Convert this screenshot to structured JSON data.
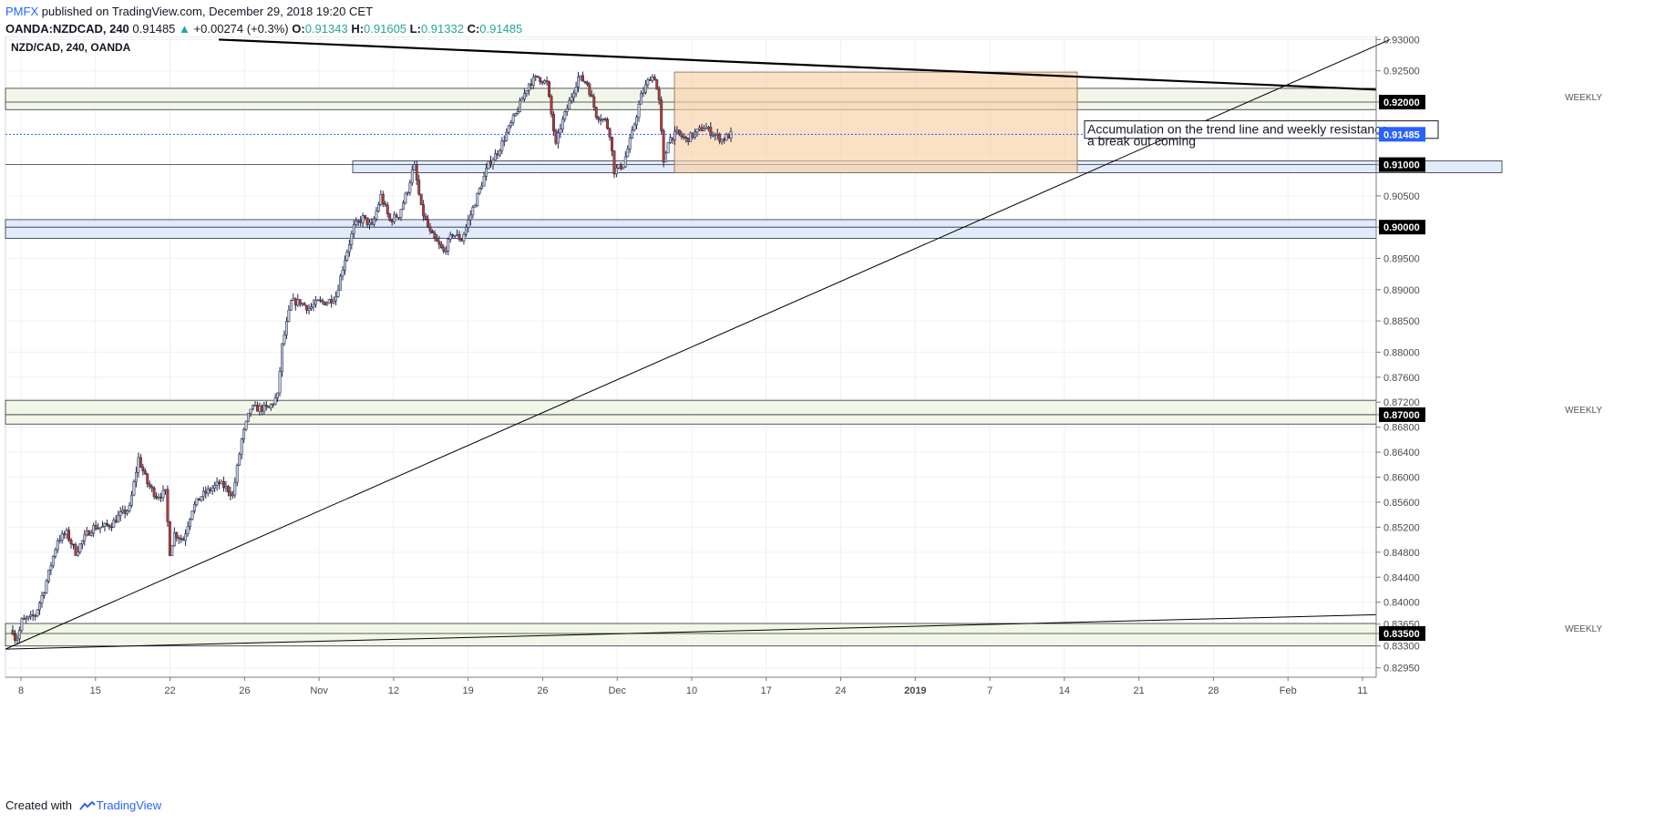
{
  "header": {
    "publisher": "PMFX",
    "published_text": "published on TradingView.com, December 29, 2018 19:20 CET",
    "symbol": "OANDA:NZDCAD, 240",
    "last": "0.91485",
    "change": "+0.00274 (+0.3%)",
    "o_label": "O:",
    "o": "0.91343",
    "h_label": "H:",
    "h": "0.91605",
    "l_label": "L:",
    "l": "0.91332",
    "c_label": "C:",
    "c": "0.91485"
  },
  "footer": {
    "created_with": "Created with",
    "brand": "TradingView"
  },
  "colors": {
    "up": "#c2cade",
    "down": "#c0392b",
    "wick": "#1d2646",
    "trendline": "#000000",
    "zone_fill": "#eef4e4",
    "zone_blue_fill": "#dde8fa",
    "box_fill": "#f7cfa6",
    "last_price": "#2962ff"
  },
  "chart_data": {
    "type": "candlestick",
    "title": "NZD/CAD, 240, OANDA",
    "ylim": [
      0.828,
      0.9305
    ],
    "x_ticks": [
      "8",
      "15",
      "22",
      "26",
      "Nov",
      "12",
      "19",
      "26",
      "Dec",
      "10",
      "17",
      "24",
      "2019",
      "7",
      "14",
      "21",
      "28",
      "Feb",
      "11"
    ],
    "y_ticks": [
      "0.93000",
      "0.92500",
      "0.92000",
      "0.91485",
      "0.91000",
      "0.90500",
      "0.90000",
      "0.89500",
      "0.89000",
      "0.88500",
      "0.88000",
      "0.87600",
      "0.87200",
      "0.87000",
      "0.86800",
      "0.86400",
      "0.86000",
      "0.85600",
      "0.85200",
      "0.84800",
      "0.84400",
      "0.84000",
      "0.83650",
      "0.83500",
      "0.83300",
      "0.82950"
    ],
    "highlighted_levels": [
      "0.92000",
      "0.91485",
      "0.91000",
      "0.90000",
      "0.87000",
      "0.83500"
    ],
    "last_price": 0.91485,
    "path": [
      [
        0,
        0.8355
      ],
      [
        0.3,
        0.834
      ],
      [
        0.6,
        0.8345
      ],
      [
        1,
        0.837
      ],
      [
        2,
        0.8375
      ],
      [
        2.5,
        0.838
      ],
      [
        3.5,
        0.842
      ],
      [
        5,
        0.85
      ],
      [
        6,
        0.851
      ],
      [
        7,
        0.848
      ],
      [
        8.3,
        0.851
      ],
      [
        9,
        0.852
      ],
      [
        10,
        0.852
      ],
      [
        11,
        0.8525
      ],
      [
        12,
        0.854
      ],
      [
        13,
        0.855
      ],
      [
        14,
        0.863
      ],
      [
        15,
        0.859
      ],
      [
        16,
        0.857
      ],
      [
        17,
        0.8575
      ],
      [
        17.5,
        0.848
      ],
      [
        18,
        0.851
      ],
      [
        19,
        0.85
      ],
      [
        20,
        0.855
      ],
      [
        21,
        0.857
      ],
      [
        22,
        0.858
      ],
      [
        23,
        0.859
      ],
      [
        24,
        0.858
      ],
      [
        24.5,
        0.857
      ],
      [
        25.5,
        0.866
      ],
      [
        26.5,
        0.871
      ],
      [
        27.5,
        0.871
      ],
      [
        28.5,
        0.871
      ],
      [
        29.5,
        0.873
      ],
      [
        30,
        0.881
      ],
      [
        31,
        0.888
      ],
      [
        32,
        0.888
      ],
      [
        33,
        0.887
      ],
      [
        34,
        0.888
      ],
      [
        35,
        0.888
      ],
      [
        36,
        0.889
      ],
      [
        37,
        0.895
      ],
      [
        38,
        0.9
      ],
      [
        39,
        0.9015
      ],
      [
        40,
        0.9
      ],
      [
        41,
        0.905
      ],
      [
        42,
        0.901
      ],
      [
        43,
        0.902
      ],
      [
        44,
        0.906
      ],
      [
        44.7,
        0.91
      ],
      [
        45.5,
        0.903
      ],
      [
        46.5,
        0.899
      ],
      [
        48,
        0.896
      ],
      [
        49,
        0.899
      ],
      [
        50,
        0.898
      ],
      [
        51,
        0.902
      ],
      [
        52,
        0.906
      ],
      [
        53,
        0.91
      ],
      [
        54,
        0.912
      ],
      [
        55,
        0.915
      ],
      [
        56,
        0.918
      ],
      [
        57.5,
        0.923
      ],
      [
        58.5,
        0.924
      ],
      [
        59.5,
        0.923
      ],
      [
        60.5,
        0.913
      ],
      [
        61,
        0.916
      ],
      [
        62,
        0.92
      ],
      [
        63,
        0.924
      ],
      [
        64,
        0.923
      ],
      [
        65,
        0.918
      ],
      [
        66,
        0.917
      ],
      [
        66.5,
        0.915
      ],
      [
        67,
        0.909
      ],
      [
        68,
        0.91
      ],
      [
        69,
        0.915
      ],
      [
        70,
        0.921
      ],
      [
        71,
        0.924
      ],
      [
        71.5,
        0.924
      ],
      [
        72,
        0.92
      ],
      [
        72.5,
        0.91
      ],
      [
        73,
        0.914
      ],
      [
        74,
        0.915
      ],
      [
        75,
        0.914
      ],
      [
        76,
        0.915
      ],
      [
        77,
        0.916
      ],
      [
        78,
        0.915
      ],
      [
        79,
        0.914
      ],
      [
        80,
        0.9148
      ]
    ],
    "annotations": [
      {
        "text": "WEEKLY",
        "level": 0.92
      },
      {
        "text": "WEEKLY",
        "level": 0.87
      },
      {
        "text": "WEEKLY",
        "level": 0.835
      },
      {
        "text": "Accumulation on the trend line and weekly resistance,\na break out coming"
      }
    ],
    "zones": [
      {
        "from": 0.9188,
        "to": 0.9222
      },
      {
        "from": 0.9087,
        "to": 0.9106
      },
      {
        "from": 0.8982,
        "to": 0.9012
      },
      {
        "from": 0.8685,
        "to": 0.8723
      },
      {
        "from": 0.833,
        "to": 0.8366
      }
    ],
    "range_box": {
      "from": 0.9087,
      "to": 0.9248
    }
  }
}
